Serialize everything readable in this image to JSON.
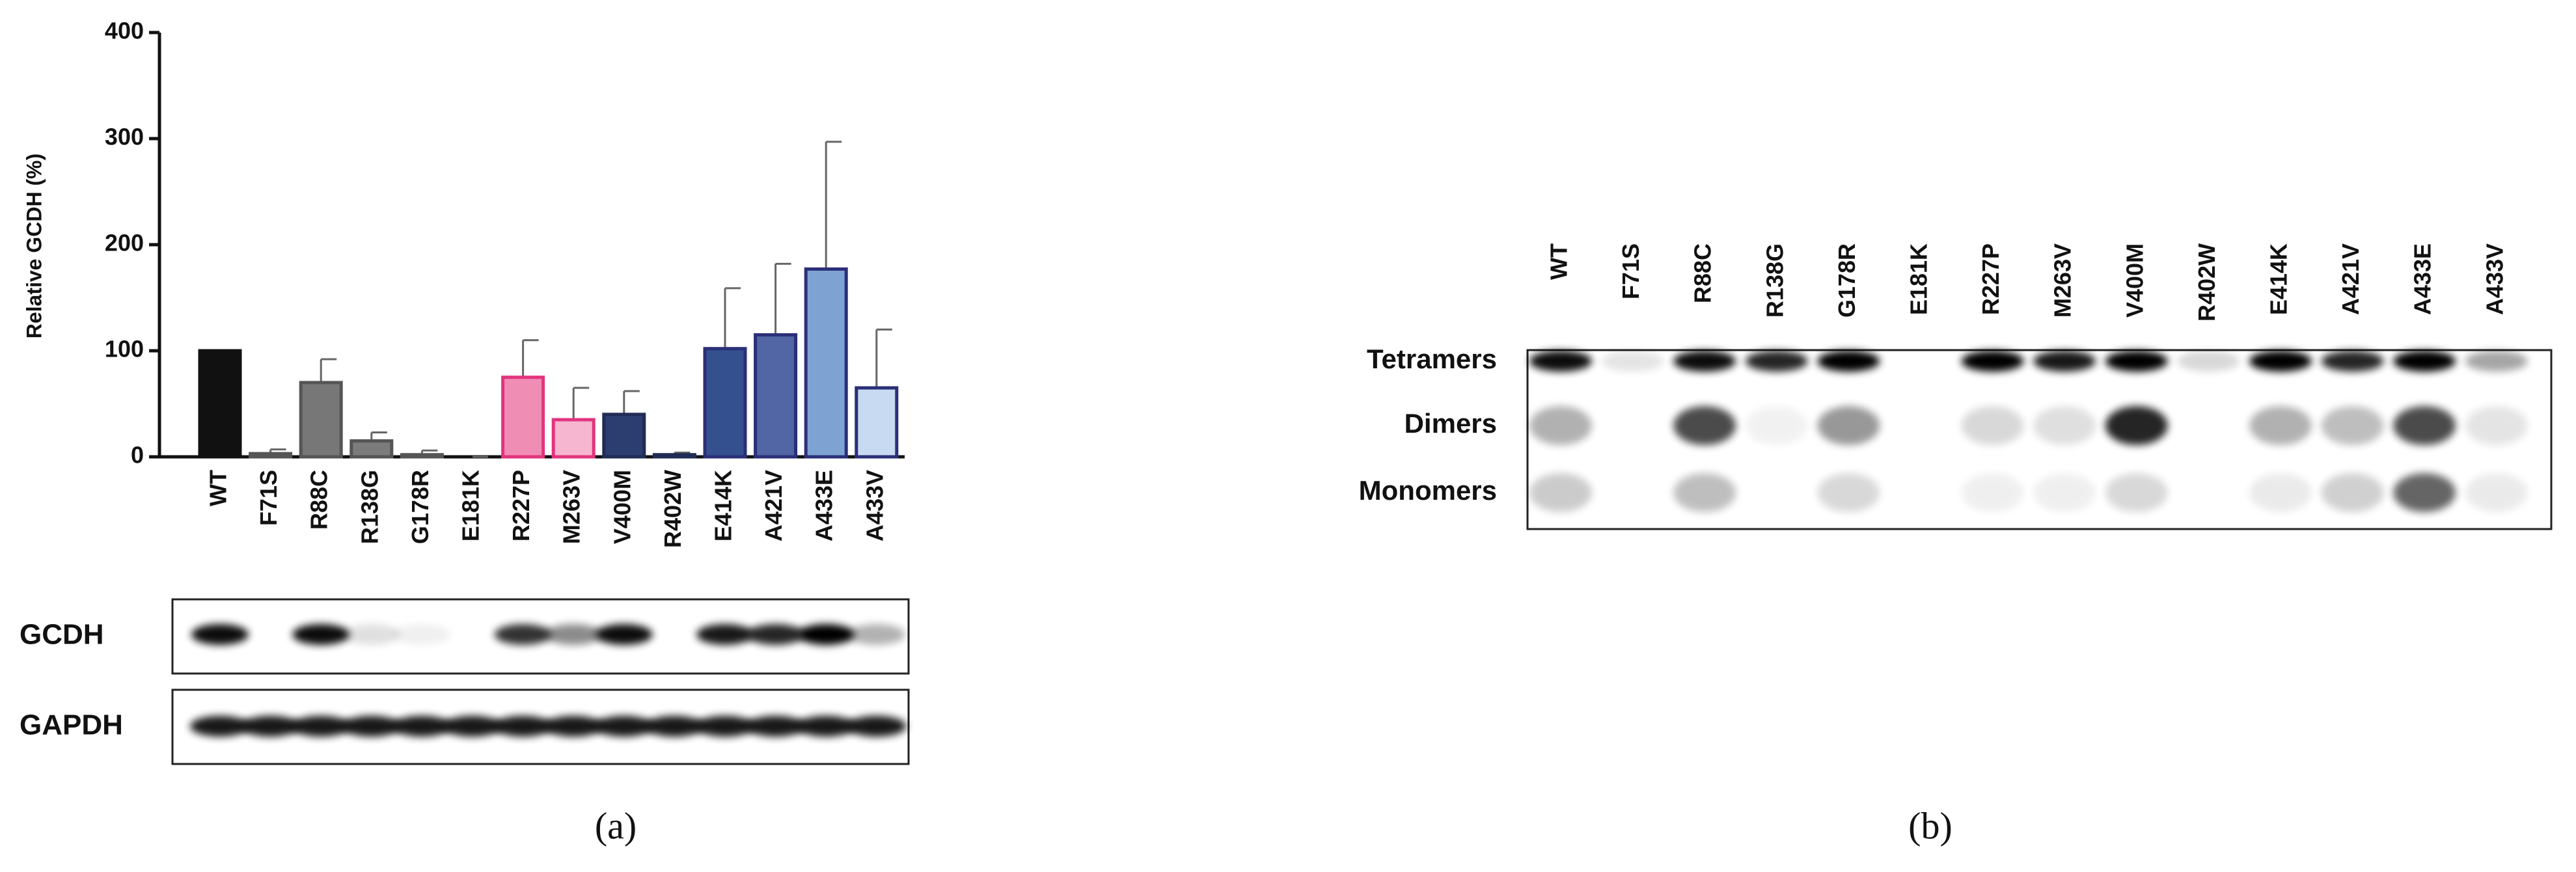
{
  "chart_data": {
    "type": "bar",
    "y_label": "Relative GCDH (%)",
    "categories": [
      "WT",
      "F71S",
      "R88C",
      "R138G",
      "G178R",
      "E181K",
      "R227P",
      "M263V",
      "V400M",
      "R402W",
      "E414K",
      "A421V",
      "A433E",
      "A433V"
    ],
    "values": [
      100,
      3,
      70,
      15,
      2,
      0,
      75,
      35,
      40,
      2,
      102,
      115,
      177,
      65
    ],
    "errors": [
      0,
      4,
      22,
      8,
      4,
      0,
      35,
      30,
      22,
      2,
      57,
      67,
      120,
      55
    ],
    "colors": [
      "#111111",
      "#6f6f6f",
      "#777777",
      "#7c7c7c",
      "#808080",
      "#808080",
      "#f08db4",
      "#f6b6d0",
      "#2c3d70",
      "#3a3a5a",
      "#34508f",
      "#5166a2",
      "#7ea3d3",
      "#c7daf1"
    ],
    "edge_colors": [
      "#111111",
      "#555555",
      "#555555",
      "#555555",
      "#555555",
      "#555555",
      "#e2347c",
      "#e2347c",
      "#1f2c55",
      "#1f2c55",
      "#2b2f78",
      "#2b2f78",
      "#2b2f78",
      "#2b2f78"
    ],
    "ylim": [
      0,
      400
    ],
    "yticks": [
      0,
      100,
      200,
      300,
      400
    ]
  },
  "panel_a_blot": {
    "rows": [
      "GCDH",
      "GAPDH"
    ]
  },
  "panel_b_blot": {
    "lanes": [
      "WT",
      "F71S",
      "R88C",
      "R138G",
      "G178R",
      "E181K",
      "R227P",
      "M263V",
      "V400M",
      "R402W",
      "E414K",
      "A421V",
      "A433E",
      "A433V"
    ],
    "bands": [
      "Tetramers",
      "Dimers",
      "Monomers"
    ]
  },
  "panel_labels": [
    "(a)",
    "(b)"
  ]
}
